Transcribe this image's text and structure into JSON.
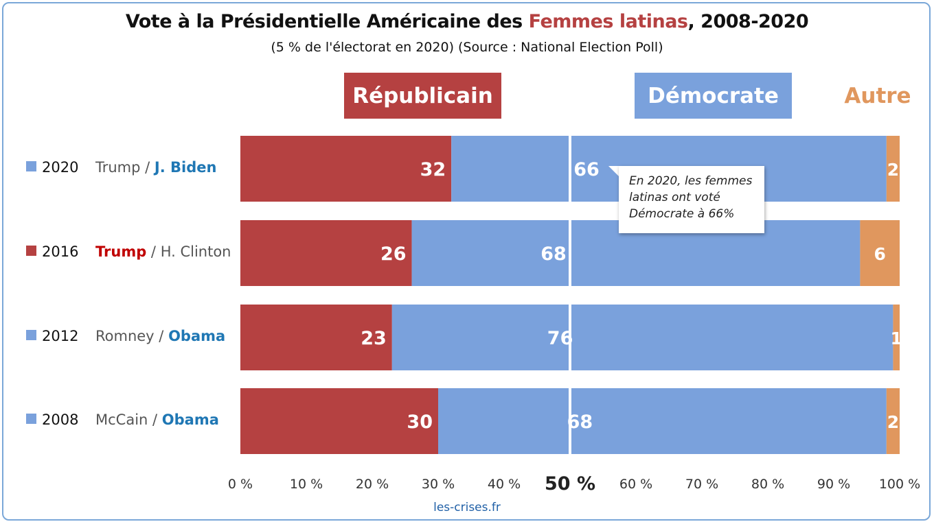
{
  "chart_data": {
    "type": "bar",
    "stacked": true,
    "orientation": "horizontal",
    "title_prefix": "Vote à la Présidentielle Américaine des ",
    "title_highlight": "Femmes latinas",
    "title_suffix": ", 2008-2020",
    "subtitle": "(5 % de l'électorat en 2020) (Source : National Election Poll)",
    "headers": {
      "rep": "Républicain",
      "dem": "Démocrate",
      "other": "Autre"
    },
    "categories": [
      "2020",
      "2016",
      "2012",
      "2008"
    ],
    "row_labels": [
      {
        "year": "2020",
        "rep": "Trump",
        "sep": " / ",
        "dem": "J. Biden",
        "winner": "dem"
      },
      {
        "year": "2016",
        "rep": "Trump",
        "sep": " / ",
        "dem": "H. Clinton",
        "winner": "rep"
      },
      {
        "year": "2012",
        "rep": "Romney",
        "sep": " / ",
        "dem": "Obama",
        "winner": "dem"
      },
      {
        "year": "2008",
        "rep": "McCain",
        "sep": " / ",
        "dem": "Obama",
        "winner": "dem"
      }
    ],
    "series": [
      {
        "name": "Républicain",
        "values": [
          32,
          26,
          23,
          30
        ]
      },
      {
        "name": "Démocrate",
        "values": [
          66,
          68,
          76,
          68
        ]
      },
      {
        "name": "Autre",
        "values": [
          2,
          6,
          1,
          2
        ]
      }
    ],
    "xlim": [
      0,
      100
    ],
    "xticks": [
      "0 %",
      "10 %",
      "20 %",
      "30 %",
      "40 %",
      "50 %",
      "60 %",
      "70 %",
      "80 %",
      "90 %",
      "100 %"
    ],
    "annotation": "En 2020, les femmes latinas ont voté Démocrate à 66%",
    "footer": "les-crises.fr",
    "colors": {
      "rep": "#b54141",
      "dem": "#7aa1dc",
      "other": "#e0975e",
      "dem_text": "#1f77b4",
      "rep_text": "#c00000"
    }
  }
}
